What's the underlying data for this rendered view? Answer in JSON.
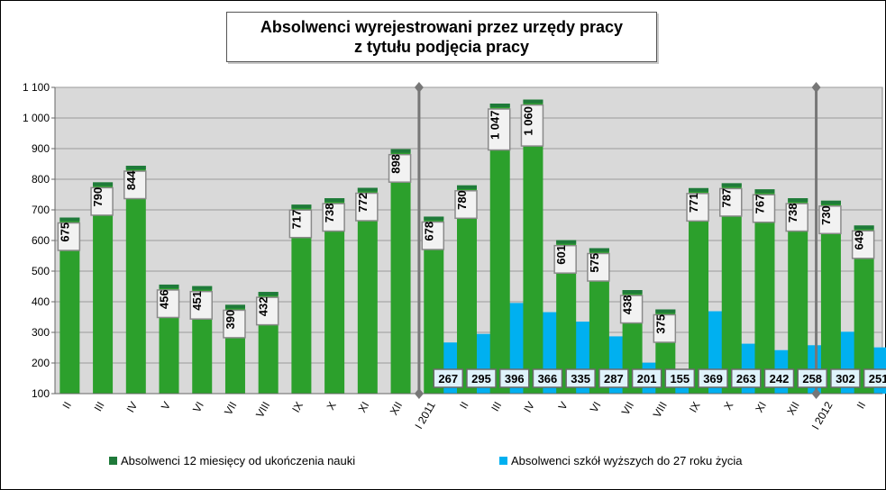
{
  "title": {
    "line1": "Absolwenci wyrejestrowani przez urzędy pracy",
    "line2": "z tytułu podjęcia pracy"
  },
  "chart_data": {
    "type": "bar",
    "title": "Absolwenci wyrejestrowani przez urzędy pracy z tytułu podjęcia pracy",
    "categories": [
      "II",
      "III",
      "IV",
      "V",
      "VI",
      "VII",
      "VIII",
      "IX",
      "X",
      "XI",
      "XII",
      "I 2011",
      "II",
      "III",
      "IV",
      "V",
      "VI",
      "VII",
      "VIII",
      "IX",
      "X",
      "XI",
      "XII",
      "I 2012",
      "II"
    ],
    "y_ticks": [
      "100",
      "200",
      "300",
      "400",
      "500",
      "600",
      "700",
      "800",
      "900",
      "1 000",
      "1 100"
    ],
    "ylim": [
      100,
      1100
    ],
    "grid": true,
    "legend_position": "bottom",
    "series": [
      {
        "name": "Absolwenci 12 miesięcy od ukończenia nauki",
        "color": "#2ca02c",
        "values": [
          675,
          790,
          844,
          456,
          451,
          390,
          432,
          717,
          738,
          772,
          898,
          678,
          780,
          1047,
          1060,
          601,
          575,
          438,
          375,
          771,
          787,
          767,
          738,
          730,
          649
        ],
        "labels": [
          "675",
          "790",
          "844",
          "456",
          "451",
          "390",
          "432",
          "717",
          "738",
          "772",
          "898",
          "678",
          "780",
          "1 047",
          "1 060",
          "601",
          "575",
          "438",
          "375",
          "771",
          "787",
          "767",
          "738",
          "730",
          "649"
        ]
      },
      {
        "name": "Absolwenci szkół wyższych do 27 roku życia",
        "color": "#00b0f0",
        "values": [
          null,
          null,
          null,
          null,
          null,
          null,
          null,
          null,
          null,
          null,
          null,
          267,
          295,
          396,
          366,
          335,
          287,
          201,
          155,
          369,
          263,
          242,
          258,
          302,
          251
        ],
        "labels": [
          "",
          "",
          "",
          "",
          "",
          "",
          "",
          "",
          "",
          "",
          "",
          "267",
          "295",
          "396",
          "366",
          "335",
          "287",
          "201",
          "155",
          "369",
          "263",
          "242",
          "258",
          "302",
          "251"
        ]
      }
    ],
    "markers": [
      {
        "between": [
          "XII",
          "I 2011"
        ]
      },
      {
        "between": [
          "XII",
          "I 2012"
        ]
      }
    ]
  }
}
